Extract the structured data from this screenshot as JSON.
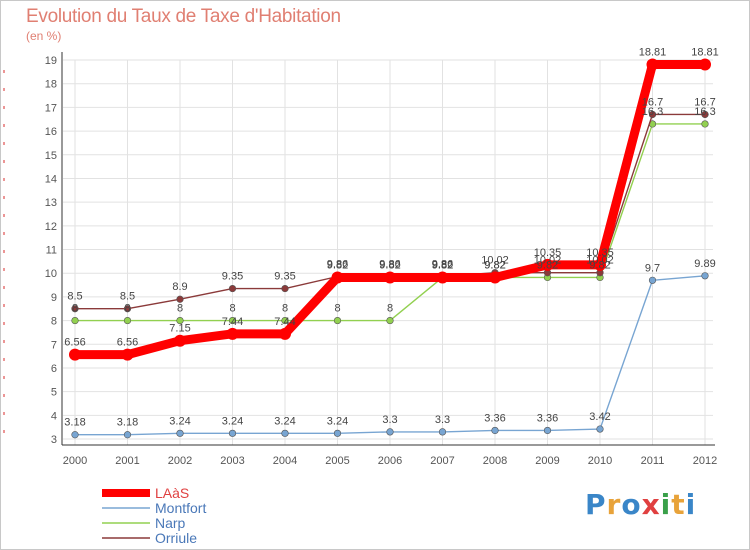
{
  "header": {
    "title": "Evolution du Taux de Taxe d'Habitation",
    "unit": "(en %)"
  },
  "brand": {
    "letters": [
      "P",
      "r",
      "o",
      "x",
      "i",
      "t",
      "i"
    ],
    "colors": [
      "#3a86c8",
      "#e8a33a",
      "#3a86c8",
      "#e04040",
      "#3aa04a",
      "#e8a33a",
      "#3a86c8"
    ]
  },
  "chart_data": {
    "type": "line",
    "title": "Evolution du Taux de Taxe d'Habitation",
    "ylabel": "(en %)",
    "xlabel": "",
    "x": [
      "2000",
      "2001",
      "2002",
      "2003",
      "2004",
      "2005",
      "2006",
      "2007",
      "2008",
      "2009",
      "2010",
      "2011",
      "2012"
    ],
    "ylim": [
      3,
      19
    ],
    "yticks": [
      3,
      4,
      5,
      6,
      7,
      8,
      9,
      10,
      11,
      12,
      13,
      14,
      15,
      16,
      17,
      18,
      19
    ],
    "grid": true,
    "legend_position": "bottom-left",
    "series": [
      {
        "name": "LAàS",
        "color": "#ff0000",
        "values": [
          6.56,
          6.56,
          7.15,
          7.44,
          7.44,
          9.82,
          9.82,
          9.82,
          9.82,
          10.35,
          10.35,
          18.81,
          18.81
        ]
      },
      {
        "name": "Montfort",
        "color": "#78a5d2",
        "values": [
          3.18,
          3.18,
          3.24,
          3.24,
          3.24,
          3.24,
          3.3,
          3.3,
          3.36,
          3.36,
          3.42,
          9.7,
          9.89
        ]
      },
      {
        "name": "Narp",
        "color": "#92d050",
        "values": [
          8,
          8,
          8,
          8,
          8,
          8,
          8,
          9.82,
          9.82,
          9.82,
          9.82,
          16.3,
          16.3
        ]
      },
      {
        "name": "Orriule",
        "color": "#8b3a3a",
        "values": [
          8.5,
          8.5,
          8.9,
          9.35,
          9.35,
          9.86,
          9.86,
          9.86,
          10.02,
          10.02,
          10.02,
          16.7,
          16.7
        ]
      }
    ]
  }
}
